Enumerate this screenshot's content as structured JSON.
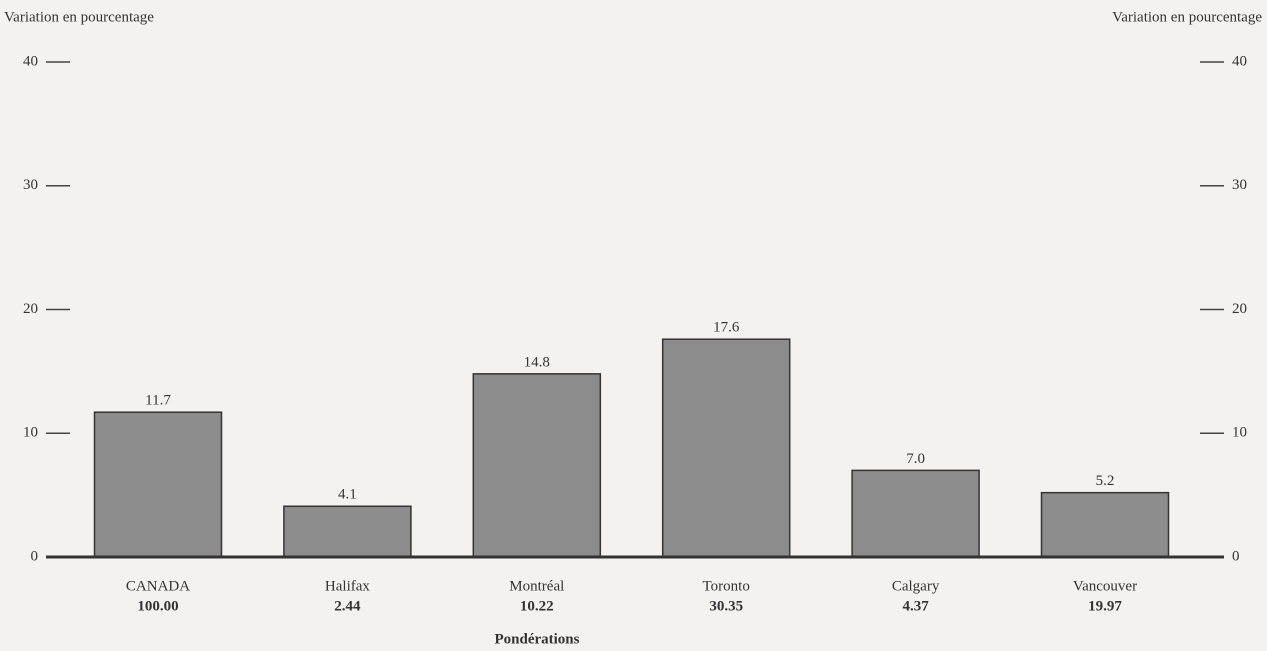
{
  "chart_data": {
    "type": "bar",
    "y_label": "Variation en pourcentage",
    "y2_label": "Variation en pourcentage",
    "x_label": "Pondérations",
    "categories": [
      "CANADA",
      "Halifax",
      "Montréal",
      "Toronto",
      "Calgary",
      "Vancouver"
    ],
    "weights": [
      "100.00",
      "2.44",
      "10.22",
      "30.35",
      "4.37",
      "19.97"
    ],
    "values": [
      11.7,
      4.1,
      14.8,
      17.6,
      7.0,
      5.2
    ],
    "value_labels": [
      "11.7",
      "4.1",
      "14.8",
      "17.6",
      "7.0",
      "5.2"
    ],
    "color": "#8c8c8c",
    "ylim": [
      0,
      40
    ],
    "yticks": [
      0,
      10,
      20,
      30,
      40
    ],
    "y2lim": [
      0,
      40
    ],
    "y2ticks": [
      0,
      10,
      20,
      30,
      40
    ]
  }
}
